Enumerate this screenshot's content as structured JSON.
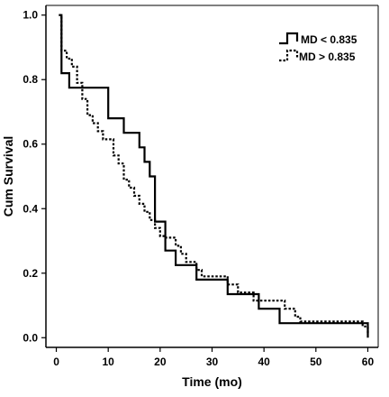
{
  "chart_data": {
    "type": "line",
    "step": true,
    "xlabel": "Time (mo)",
    "ylabel": "Cum Survival",
    "xlim": [
      -2,
      62
    ],
    "ylim": [
      -0.03,
      1.03
    ],
    "xticks": [
      0,
      10,
      20,
      30,
      40,
      50,
      60
    ],
    "yticks": [
      0.0,
      0.2,
      0.4,
      0.6,
      0.8,
      1.0
    ],
    "ytick_labels": [
      "0.0",
      "0.2",
      "0.4",
      "0.6",
      "0.8",
      "1.0"
    ],
    "legend_position": "top-right",
    "series": [
      {
        "name": "MD < 0.835",
        "line_style": "solid",
        "color": "#000000",
        "x": [
          0.5,
          1,
          2.5,
          10,
          12,
          13,
          16,
          17,
          18,
          19,
          21,
          23,
          27,
          33,
          39,
          43,
          60
        ],
        "y": [
          1.0,
          0.82,
          0.775,
          0.68,
          0.68,
          0.635,
          0.59,
          0.545,
          0.5,
          0.36,
          0.27,
          0.225,
          0.18,
          0.135,
          0.09,
          0.045,
          0.0
        ]
      },
      {
        "name": "MD > 0.835",
        "line_style": "dotted",
        "color": "#000000",
        "x": [
          0.5,
          1,
          2,
          3,
          4,
          5,
          6,
          7,
          8,
          9,
          11,
          12,
          13,
          14,
          15,
          16,
          17,
          18,
          19,
          20,
          21,
          23,
          24,
          25,
          27,
          28,
          33,
          35,
          38,
          44,
          46,
          47,
          59,
          60
        ],
        "y": [
          1.0,
          0.89,
          0.865,
          0.84,
          0.79,
          0.74,
          0.69,
          0.665,
          0.64,
          0.615,
          0.565,
          0.54,
          0.49,
          0.465,
          0.44,
          0.415,
          0.39,
          0.365,
          0.34,
          0.315,
          0.31,
          0.285,
          0.26,
          0.235,
          0.21,
          0.19,
          0.165,
          0.14,
          0.115,
          0.09,
          0.065,
          0.05,
          0.035,
          0.01
        ]
      }
    ]
  }
}
